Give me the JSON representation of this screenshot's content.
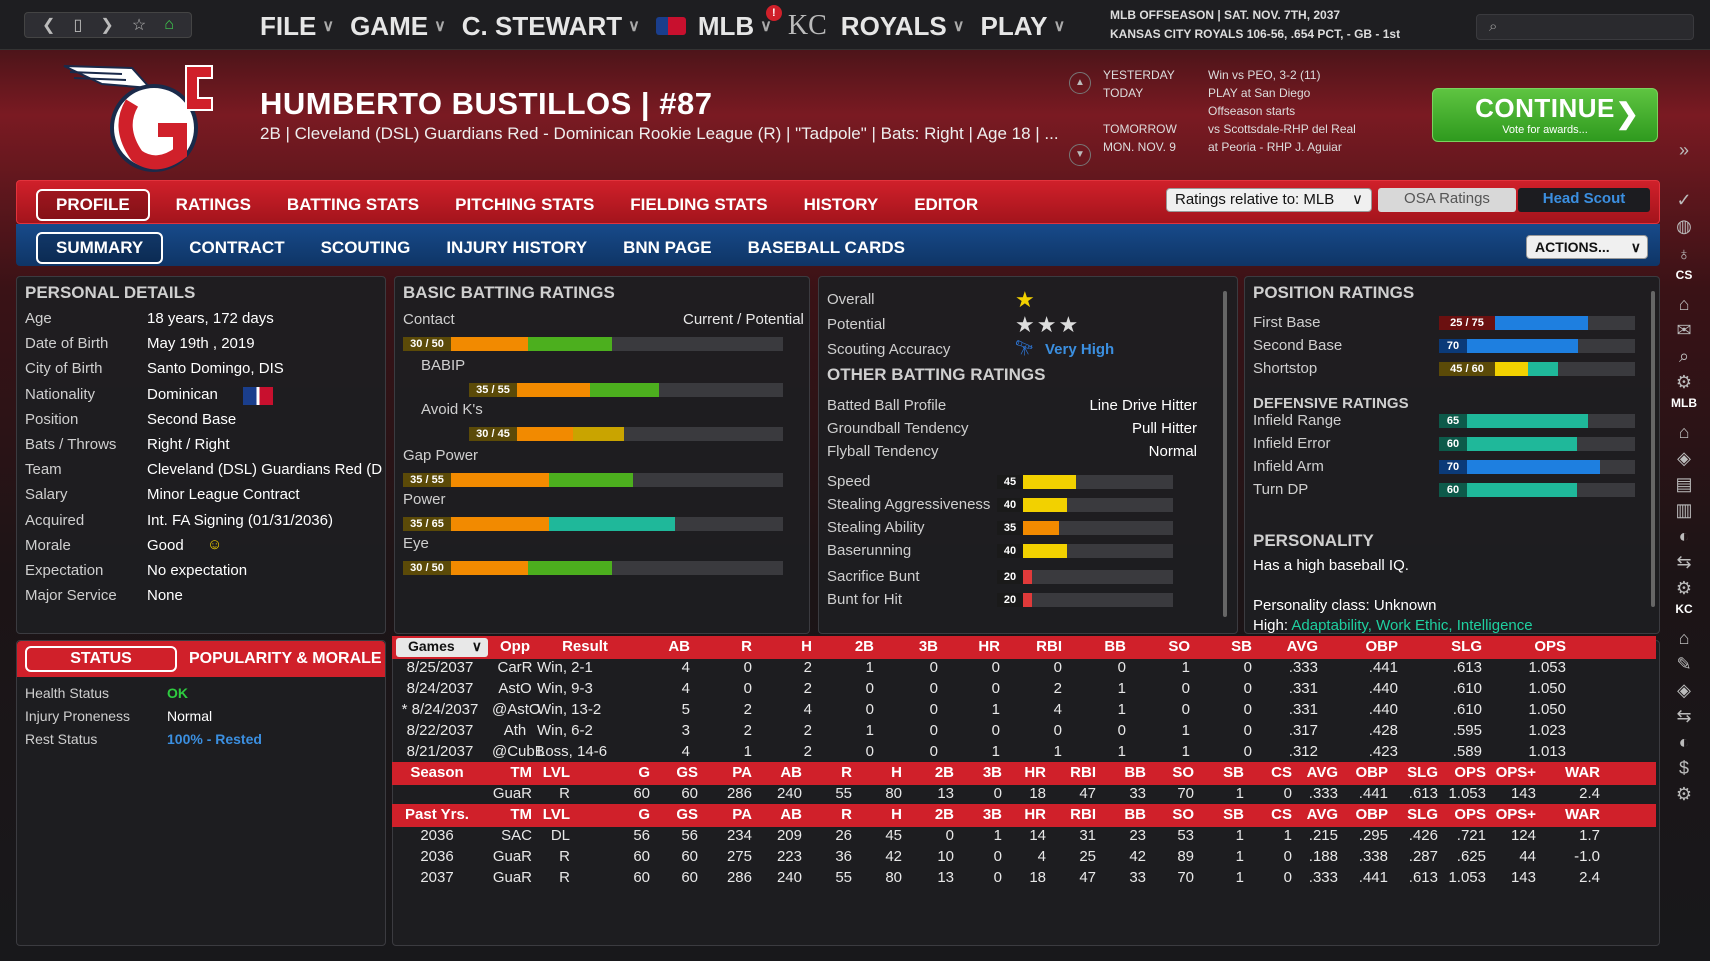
{
  "top": {
    "menu": [
      "FILE",
      "GAME",
      "C. STEWART",
      "MLB",
      "ROYALS",
      "PLAY"
    ],
    "info1": "MLB OFFSEASON  |  SAT. NOV. 7TH, 2037",
    "info2": "KANSAS CITY ROYALS   106-56, .654 PCT, - GB - 1st"
  },
  "player": {
    "name": "HUMBERTO BUSTILLOS  |  #87",
    "sub": "2B | Cleveland (DSL) Guardians Red - Dominican Rookie League (R)  |  \"Tadpole\" | Bats: Right  |  Age 18  | ..."
  },
  "schedule": [
    [
      "YESTERDAY",
      "Win vs PEO, 3-2 (11)"
    ],
    [
      "TODAY",
      "PLAY at San Diego"
    ],
    [
      "",
      "Offseason starts"
    ],
    [
      "TOMORROW",
      "vs Scottsdale-RHP del Real"
    ],
    [
      "MON. NOV. 9",
      "at Peoria - RHP J. Aguiar"
    ]
  ],
  "continue": {
    "label": "CONTINUE",
    "sub": "Vote for awards..."
  },
  "tabs1": [
    "PROFILE",
    "RATINGS",
    "BATTING STATS",
    "PITCHING STATS",
    "FIELDING STATS",
    "HISTORY",
    "EDITOR"
  ],
  "tabs2": [
    "SUMMARY",
    "CONTRACT",
    "SCOUTING",
    "INJURY HISTORY",
    "BNN PAGE",
    "BASEBALL CARDS"
  ],
  "ratings_rel": "Ratings relative to: MLB",
  "osa": "OSA Ratings",
  "head_scout": "Head Scout",
  "actions": "ACTIONS...",
  "personal": {
    "title": "PERSONAL DETAILS",
    "rows": [
      [
        "Age",
        "18 years, 172 days"
      ],
      [
        "Date of Birth",
        "May 19th , 2019"
      ],
      [
        "City of Birth",
        "Santo Domingo, DIS"
      ],
      [
        "Nationality",
        "Dominican"
      ],
      [
        "Position",
        "Second Base"
      ],
      [
        "Bats / Throws",
        "Right / Right"
      ],
      [
        "Team",
        "Cleveland (DSL) Guardians Red (DSL"
      ],
      [
        "Salary",
        "Minor League Contract"
      ],
      [
        "Acquired",
        "Int. FA Signing (01/31/2036)"
      ],
      [
        "Morale",
        "Good"
      ],
      [
        "Expectation",
        "No expectation"
      ],
      [
        "Major Service",
        "None"
      ]
    ]
  },
  "batting": {
    "title": "BASIC BATTING RATINGS",
    "cp": "Current / Potential",
    "items": [
      {
        "label": "Contact",
        "txt": "30 / 50",
        "cur": 30,
        "pot": 50,
        "ind": 0
      },
      {
        "label": "BABIP",
        "txt": "35 / 55",
        "cur": 35,
        "pot": 55,
        "ind": 1
      },
      {
        "label": "Avoid K's",
        "txt": "30 / 45",
        "cur": 30,
        "pot": 45,
        "ind": 1
      },
      {
        "label": "Gap Power",
        "txt": "35 / 55",
        "cur": 35,
        "pot": 55,
        "ind": 0
      },
      {
        "label": "Power",
        "txt": "35 / 65",
        "cur": 35,
        "pot": 65,
        "ind": 0
      },
      {
        "label": "Eye",
        "txt": "30 / 50",
        "cur": 30,
        "pot": 50,
        "ind": 0
      }
    ]
  },
  "summary": {
    "overall": "Overall",
    "potential": "Potential",
    "accuracy": "Scouting Accuracy",
    "accuracy_val": "Very High",
    "other_title": "OTHER BATTING RATINGS",
    "other": [
      [
        "Batted Ball Profile",
        "Line Drive Hitter"
      ],
      [
        "Groundball Tendency",
        "Pull Hitter"
      ],
      [
        "Flyball Tendency",
        "Normal"
      ]
    ],
    "run": [
      [
        "Speed",
        45
      ],
      [
        "Stealing Aggressiveness",
        40
      ],
      [
        "Stealing Ability",
        35
      ],
      [
        "Baserunning",
        40
      ],
      [
        "Sacrifice Bunt",
        20
      ],
      [
        "Bunt for Hit",
        20
      ]
    ]
  },
  "position": {
    "title": "POSITION RATINGS",
    "items": [
      [
        "First Base",
        "25 / 75",
        25,
        75
      ],
      [
        "Second Base",
        "70",
        70,
        70
      ],
      [
        "Shortstop",
        "45 / 60",
        45,
        60
      ]
    ],
    "def_title": "DEFENSIVE RATINGS",
    "def": [
      [
        "Infield Range",
        65
      ],
      [
        "Infield Error",
        60
      ],
      [
        "Infield Arm",
        70
      ],
      [
        "Turn DP",
        60
      ]
    ],
    "pers_title": "PERSONALITY",
    "pers1": "Has a high baseball IQ.",
    "pers2": "Personality class: Unknown",
    "pers3": "High:",
    "pers4": "Adaptability, Work Ethic, Intelligence"
  },
  "status": {
    "tab1": "STATUS",
    "tab2": "POPULARITY & MORALE",
    "rows": [
      [
        "Health Status",
        "OK"
      ],
      [
        "Injury Proneness",
        "Normal"
      ],
      [
        "Rest Status",
        "100% - Rested"
      ]
    ]
  },
  "stats": {
    "games_hdr": [
      "Games",
      "Opp",
      "Result",
      "AB",
      "R",
      "H",
      "2B",
      "3B",
      "HR",
      "RBI",
      "BB",
      "SO",
      "SB",
      "AVG",
      "OBP",
      "SLG",
      "OPS"
    ],
    "games": [
      [
        "8/25/2037",
        "CarR",
        "Win, 2-1",
        "4",
        "0",
        "2",
        "1",
        "0",
        "0",
        "0",
        "0",
        "1",
        "0",
        ".333",
        ".441",
        ".613",
        "1.053"
      ],
      [
        "8/24/2037",
        "AstO",
        "Win, 9-3",
        "4",
        "0",
        "2",
        "0",
        "0",
        "0",
        "2",
        "1",
        "0",
        "0",
        ".331",
        ".440",
        ".610",
        "1.050"
      ],
      [
        "* 8/24/2037",
        "@AstO",
        "Win, 13-2",
        "5",
        "2",
        "4",
        "0",
        "0",
        "1",
        "4",
        "1",
        "0",
        "0",
        ".331",
        ".440",
        ".610",
        "1.050"
      ],
      [
        "8/22/2037",
        "Ath",
        "Win, 6-2",
        "3",
        "2",
        "2",
        "1",
        "0",
        "0",
        "0",
        "0",
        "1",
        "0",
        ".317",
        ".428",
        ".595",
        "1.023"
      ],
      [
        "8/21/2037",
        "@CubB",
        "Loss, 14-6",
        "4",
        "1",
        "2",
        "0",
        "0",
        "1",
        "1",
        "1",
        "1",
        "0",
        ".312",
        ".423",
        ".589",
        "1.013"
      ]
    ],
    "season_hdr": [
      "Season",
      "TM",
      "LVL",
      "G",
      "GS",
      "PA",
      "AB",
      "R",
      "H",
      "2B",
      "3B",
      "HR",
      "RBI",
      "BB",
      "SO",
      "SB",
      "CS",
      "AVG",
      "OBP",
      "SLG",
      "OPS",
      "OPS+",
      "WAR"
    ],
    "season": [
      [
        "",
        "GuaR",
        "R",
        "60",
        "60",
        "286",
        "240",
        "55",
        "80",
        "13",
        "0",
        "18",
        "47",
        "33",
        "70",
        "1",
        "0",
        ".333",
        ".441",
        ".613",
        "1.053",
        "143",
        "2.4"
      ]
    ],
    "past_hdr": [
      "Past Yrs.",
      "TM",
      "LVL",
      "G",
      "GS",
      "PA",
      "AB",
      "R",
      "H",
      "2B",
      "3B",
      "HR",
      "RBI",
      "BB",
      "SO",
      "SB",
      "CS",
      "AVG",
      "OBP",
      "SLG",
      "OPS",
      "OPS+",
      "WAR"
    ],
    "past": [
      [
        "2036",
        "SAC",
        "DL",
        "56",
        "56",
        "234",
        "209",
        "26",
        "45",
        "0",
        "1",
        "14",
        "31",
        "23",
        "53",
        "1",
        "1",
        ".215",
        ".295",
        ".426",
        ".721",
        "124",
        "1.7"
      ],
      [
        "2036",
        "GuaR",
        "R",
        "60",
        "60",
        "275",
        "223",
        "36",
        "42",
        "10",
        "0",
        "4",
        "25",
        "42",
        "89",
        "1",
        "0",
        ".188",
        ".338",
        ".287",
        ".625",
        "44",
        "-1.0"
      ],
      [
        "2037",
        "GuaR",
        "R",
        "60",
        "60",
        "286",
        "240",
        "55",
        "80",
        "13",
        "0",
        "18",
        "47",
        "33",
        "70",
        "1",
        "0",
        ".333",
        ".441",
        ".613",
        "1.053",
        "143",
        "2.4"
      ]
    ]
  },
  "sidebar": [
    "CS",
    "MLB",
    "KC"
  ],
  "colors": {
    "red": "#d0202a",
    "blue": "#1e7fe0",
    "green": "#4caf1e",
    "teal": "#1fb89a",
    "yellow": "#f2d100",
    "orange": "#f28a00"
  }
}
